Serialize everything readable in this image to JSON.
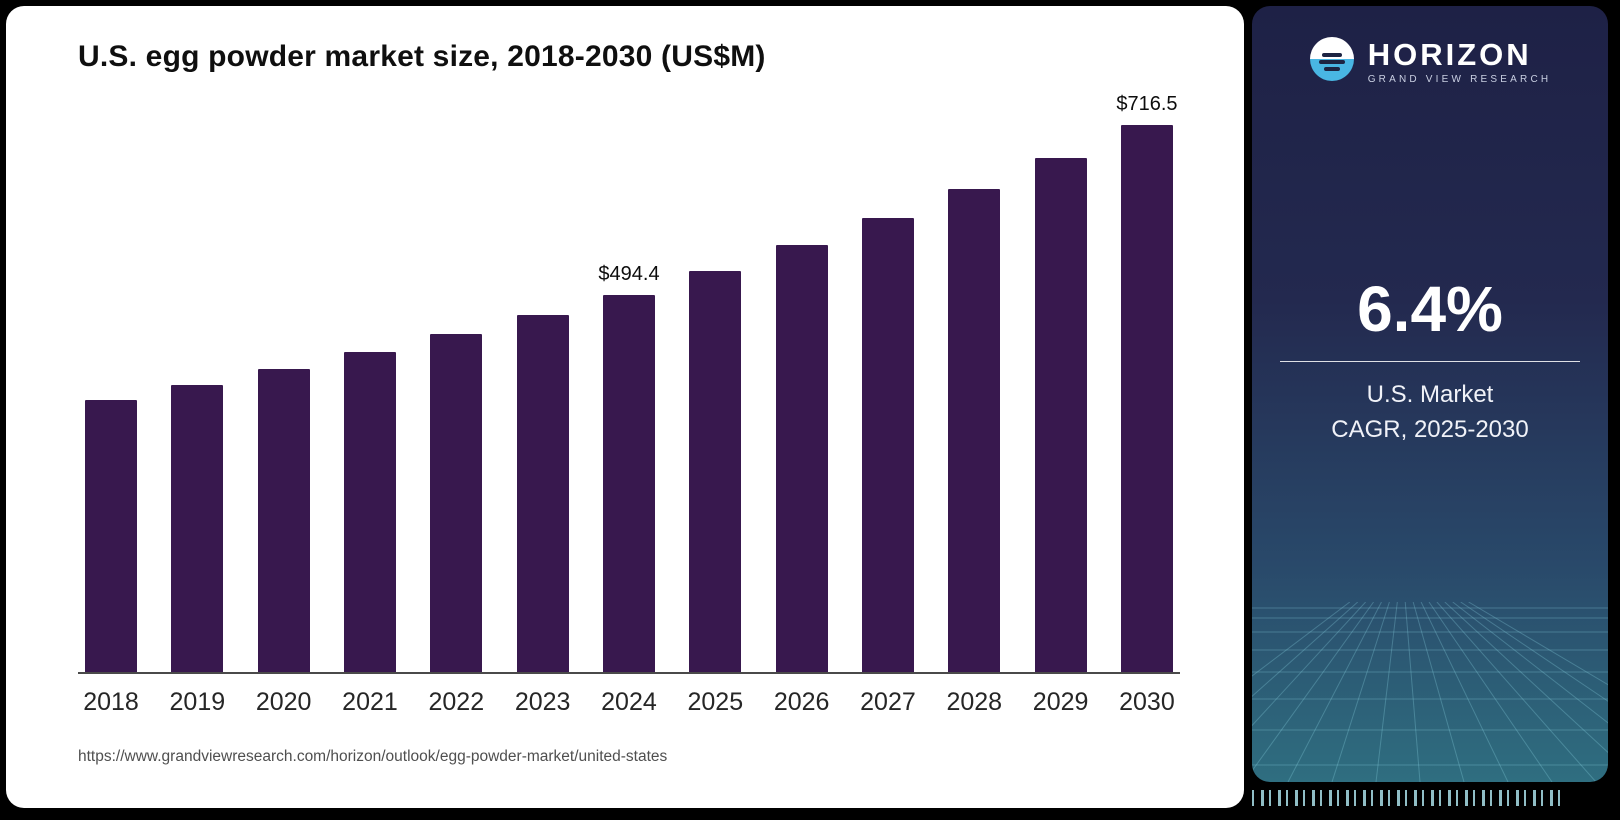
{
  "page": {
    "source_url": "https://www.grandviewresearch.com/horizon/outlook/egg-powder-market/united-states"
  },
  "chart_data": {
    "type": "bar",
    "title": "U.S. egg powder market size, 2018-2030 (US$M)",
    "categories": [
      "2018",
      "2019",
      "2020",
      "2021",
      "2022",
      "2023",
      "2024",
      "2025",
      "2026",
      "2027",
      "2028",
      "2029",
      "2030"
    ],
    "values": [
      356.2,
      376.0,
      397.1,
      419.3,
      442.7,
      467.5,
      494.4,
      525.4,
      559.0,
      594.8,
      632.9,
      673.4,
      716.5
    ],
    "annotations": [
      {
        "category": "2024",
        "text": "$494.4"
      },
      {
        "category": "2030",
        "text": "$716.5"
      }
    ],
    "xlabel": "",
    "ylabel": "",
    "ylim": [
      0,
      760
    ],
    "grid": false,
    "legend": "none",
    "bar_color": "#38184E"
  },
  "sidebar": {
    "brand": {
      "name": "HORIZON",
      "subtitle": "GRAND VIEW RESEARCH"
    },
    "stat": {
      "value": "6.4%",
      "label_line1": "U.S. Market",
      "label_line2": "CAGR, 2025-2030"
    },
    "colors": {
      "gradient_top": "#1e2146",
      "gradient_bottom": "#2f6e80",
      "accent_blue": "#49b6e3"
    }
  }
}
